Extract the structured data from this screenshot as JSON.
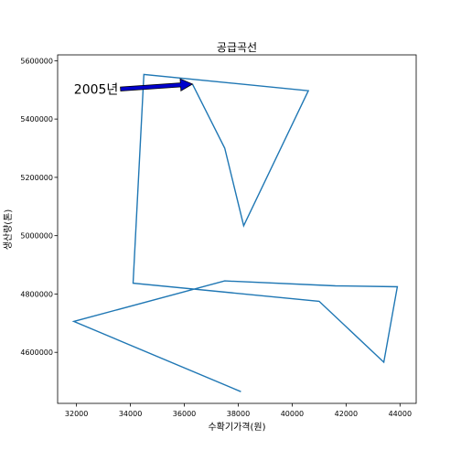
{
  "chart_data": {
    "type": "line",
    "title": "공급곡선",
    "xlabel": "수확기가격(원)",
    "ylabel": "생산량(톤)",
    "xlim": [
      31300,
      44600
    ],
    "ylim": [
      4425000,
      5620000
    ],
    "xticks": [
      32000,
      34000,
      36000,
      38000,
      40000,
      42000,
      44000
    ],
    "xtick_labels": [
      "32000",
      "34000",
      "36000",
      "38000",
      "40000",
      "42000",
      "44000"
    ],
    "yticks": [
      4600000,
      4800000,
      5000000,
      5200000,
      5400000,
      5600000
    ],
    "ytick_labels": [
      "4600000",
      "4800000",
      "5000000",
      "5200000",
      "5400000",
      "5600000"
    ],
    "grid": false,
    "line_color": "#1f77b4",
    "series": [
      {
        "x": [
          38100,
          31900,
          37500,
          41600,
          43900,
          43400,
          41000,
          34100,
          34500,
          40600,
          38200,
          37500,
          36300
        ],
        "y": [
          4465000,
          4706000,
          4845000,
          4828000,
          4825000,
          4566000,
          4775000,
          4837000,
          5553000,
          5497000,
          5034000,
          5300000,
          5520000
        ]
      }
    ],
    "annotations": [
      {
        "text": "2005년",
        "point": [
          36300,
          5520000
        ],
        "text_anchor_at": [
          33600,
          5503000
        ],
        "arrow_color": "#0000cc"
      }
    ]
  }
}
